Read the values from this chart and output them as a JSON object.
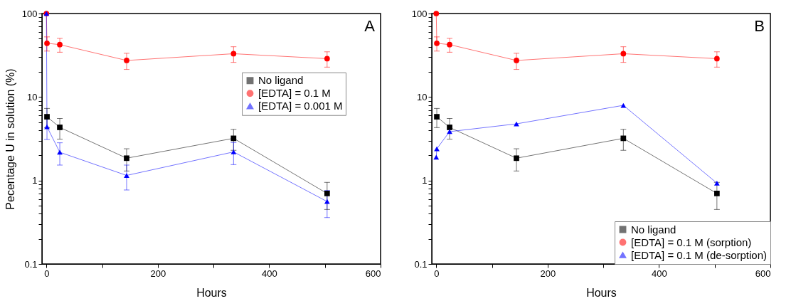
{
  "chart_data": [
    {
      "type": "line",
      "xlabel": "Hours",
      "ylabel": "Pecentage U in solution (%)",
      "annotations": [
        "A"
      ],
      "log": true,
      "grid": false,
      "legend": "right",
      "xlim": [
        -8,
        600
      ],
      "xticks": [
        0,
        {
          "value": 100,
          "label": null
        },
        200,
        {
          "value": 300,
          "label": null
        },
        400,
        {
          "value": 500,
          "label": null
        },
        600
      ],
      "ylim": [
        0.1,
        100
      ],
      "yticks": [
        0.1,
        {
          "value": 0.2,
          "label": null
        },
        {
          "value": 0.3,
          "label": null
        },
        {
          "value": 0.4,
          "label": null
        },
        {
          "value": 0.5,
          "label": null
        },
        {
          "value": 0.6,
          "label": null
        },
        {
          "value": 0.7,
          "label": null
        },
        {
          "value": 0.8,
          "label": null
        },
        {
          "value": 0.9,
          "label": null
        },
        1,
        {
          "value": 2,
          "label": null
        },
        {
          "value": 3,
          "label": null
        },
        {
          "value": 4,
          "label": null
        },
        {
          "value": 5,
          "label": null
        },
        {
          "value": 6,
          "label": null
        },
        {
          "value": 7,
          "label": null
        },
        {
          "value": 8,
          "label": null
        },
        {
          "value": 9,
          "label": null
        },
        10,
        {
          "value": 20,
          "label": null
        },
        {
          "value": 30,
          "label": null
        },
        {
          "value": 40,
          "label": null
        },
        {
          "value": 50,
          "label": null
        },
        {
          "value": 60,
          "label": null
        },
        {
          "value": 70,
          "label": null
        },
        {
          "value": 80,
          "label": null
        },
        {
          "value": 90,
          "label": null
        },
        100
      ],
      "series": [
        {
          "name": "No ligand",
          "color": "#000000",
          "marker": "square",
          "x": [
            1,
            24,
            144,
            336,
            504
          ],
          "values": [
            5.8,
            4.33,
            1.85,
            3.2,
            0.7
          ],
          "errors": [
            1.5,
            1.2,
            0.55,
            0.9,
            0.25
          ]
        },
        {
          "name": "[EDTA] = 0.1 M",
          "color": "#ff0000",
          "marker": "circle",
          "x": [
            0,
            1,
            24,
            144,
            336,
            504
          ],
          "values": [
            100,
            44,
            42.4,
            27.4,
            33,
            28.8
          ],
          "errors": [
            null,
            8.5,
            8,
            6,
            7,
            6
          ]
        },
        {
          "name": "[EDTA] = 0.001 M",
          "color": "#0000ff",
          "marker": "triangle",
          "x": [
            0,
            1,
            24,
            144,
            336,
            504
          ],
          "values": [
            100,
            4.4,
            2.18,
            1.15,
            2.2,
            0.56
          ],
          "errors": [
            null,
            1.3,
            0.65,
            0.38,
            0.65,
            0.2
          ]
        }
      ]
    },
    {
      "type": "line",
      "xlabel": "Hours",
      "annotations": [
        "B"
      ],
      "log": true,
      "grid": false,
      "legend": "bottom right",
      "xlim": [
        -8,
        600
      ],
      "xticks": [
        0,
        {
          "value": 100,
          "label": null
        },
        200,
        {
          "value": 300,
          "label": null
        },
        400,
        {
          "value": 500,
          "label": null
        },
        600
      ],
      "ylim": [
        0.1,
        100
      ],
      "yticks": [
        0.1,
        {
          "value": 0.2,
          "label": null
        },
        {
          "value": 0.3,
          "label": null
        },
        {
          "value": 0.4,
          "label": null
        },
        {
          "value": 0.5,
          "label": null
        },
        {
          "value": 0.6,
          "label": null
        },
        {
          "value": 0.7,
          "label": null
        },
        {
          "value": 0.8,
          "label": null
        },
        {
          "value": 0.9,
          "label": null
        },
        1,
        {
          "value": 2,
          "label": null
        },
        {
          "value": 3,
          "label": null
        },
        {
          "value": 4,
          "label": null
        },
        {
          "value": 5,
          "label": null
        },
        {
          "value": 6,
          "label": null
        },
        {
          "value": 7,
          "label": null
        },
        {
          "value": 8,
          "label": null
        },
        {
          "value": 9,
          "label": null
        },
        10,
        {
          "value": 20,
          "label": null
        },
        {
          "value": 30,
          "label": null
        },
        {
          "value": 40,
          "label": null
        },
        {
          "value": 50,
          "label": null
        },
        {
          "value": 60,
          "label": null
        },
        {
          "value": 70,
          "label": null
        },
        {
          "value": 80,
          "label": null
        },
        {
          "value": 90,
          "label": null
        },
        100
      ],
      "series": [
        {
          "name": "No ligand",
          "color": "#000000",
          "marker": "square",
          "x": [
            1,
            24,
            144,
            336,
            504
          ],
          "values": [
            5.8,
            4.33,
            1.85,
            3.2,
            0.7
          ],
          "errors": [
            1.5,
            1.2,
            0.55,
            0.9,
            0.25
          ]
        },
        {
          "name": "[EDTA] = 0.1 M (sorption)",
          "color": "#ff0000",
          "marker": "circle",
          "x": [
            0,
            1,
            24,
            144,
            336,
            504
          ],
          "values": [
            100,
            44,
            42.4,
            27.4,
            33,
            28.8
          ],
          "errors": [
            null,
            8.5,
            8,
            6,
            7,
            6
          ]
        },
        {
          "name": "[EDTA] = 0.1 M (de-sorption)",
          "color": "#0000ff",
          "marker": "triangle",
          "x": [
            0,
            1,
            24,
            144,
            336,
            504
          ],
          "values": [
            1.9,
            2.4,
            3.85,
            4.77,
            7.95,
            0.93
          ]
        }
      ]
    }
  ]
}
